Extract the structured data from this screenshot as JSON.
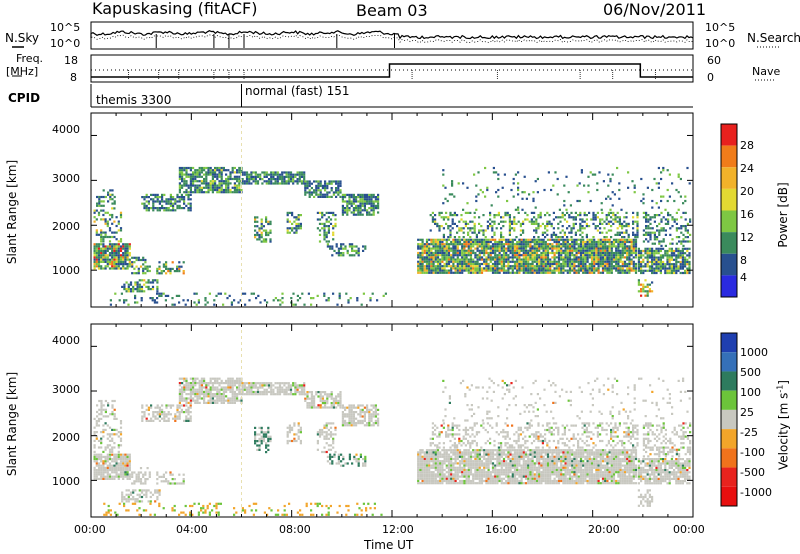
{
  "header": {
    "station": "Kapuskasing (fitACF)",
    "beam": "Beam 03",
    "date": "06/Nov/2011"
  },
  "side_labels": {
    "nsky": "N.Sky",
    "nsearch": "N.Search",
    "freq": "Freq.",
    "freq_unit": "[MHz]",
    "nave": "Nave",
    "cpid": "CPID"
  },
  "mini_axes": {
    "noise_top": "10^5",
    "noise_bottom": "10^0",
    "freq_top": "18",
    "freq_bottom": "8",
    "nave_top": "60",
    "nave_bottom": "0"
  },
  "cpid_segments": [
    {
      "label": "themis 3300",
      "start_hour": 0.0,
      "end_hour": 6.0
    },
    {
      "label": "normal (fast) 151",
      "start_hour": 6.0,
      "end_hour": 24.0
    }
  ],
  "legend_power": {
    "label": "Power [dB]",
    "ticks": [
      "28",
      "24",
      "20",
      "16",
      "12",
      "8",
      "4"
    ],
    "colors": [
      "#e8211e",
      "#f07c1a",
      "#f2b22a",
      "#e3d932",
      "#7ec743",
      "#3a8a5c",
      "#28508f",
      "#2a2ae0"
    ]
  },
  "legend_velocity": {
    "label": "Velocity [m s",
    "label_sup": "-1",
    "label_end": "]",
    "ticks": [
      "1000",
      "500",
      "100",
      "25",
      "-25",
      "-100",
      "-500",
      "-1000"
    ],
    "colors": [
      "#1f3fb0",
      "#3570b8",
      "#2e7b5e",
      "#6cc43a",
      "#c8c8c0",
      "#f2a52a",
      "#f0731c",
      "#e8231e",
      "#e80f0f"
    ]
  },
  "chart_data": [
    {
      "type": "heatmap",
      "title": "Power",
      "ylabel": "Slant Range [km]",
      "xlabel": "",
      "x_ticks": [
        "00:00",
        "04:00",
        "08:00",
        "12:00",
        "16:00",
        "20:00",
        "00:00"
      ],
      "y_ticks": [
        1000,
        2000,
        3000,
        4000
      ],
      "xlim": [
        0,
        24
      ],
      "ylim": [
        180,
        4500
      ],
      "colorbar": "Power [dB]"
    },
    {
      "type": "heatmap",
      "title": "Velocity",
      "ylabel": "Slant Range [km]",
      "xlabel": "Time UT",
      "x_ticks": [
        "00:00",
        "04:00",
        "08:00",
        "12:00",
        "16:00",
        "20:00",
        "00:00"
      ],
      "y_ticks": [
        1000,
        2000,
        3000,
        4000
      ],
      "xlim": [
        0,
        24
      ],
      "ylim": [
        180,
        4500
      ],
      "colorbar": "Velocity [m s-1]"
    }
  ]
}
